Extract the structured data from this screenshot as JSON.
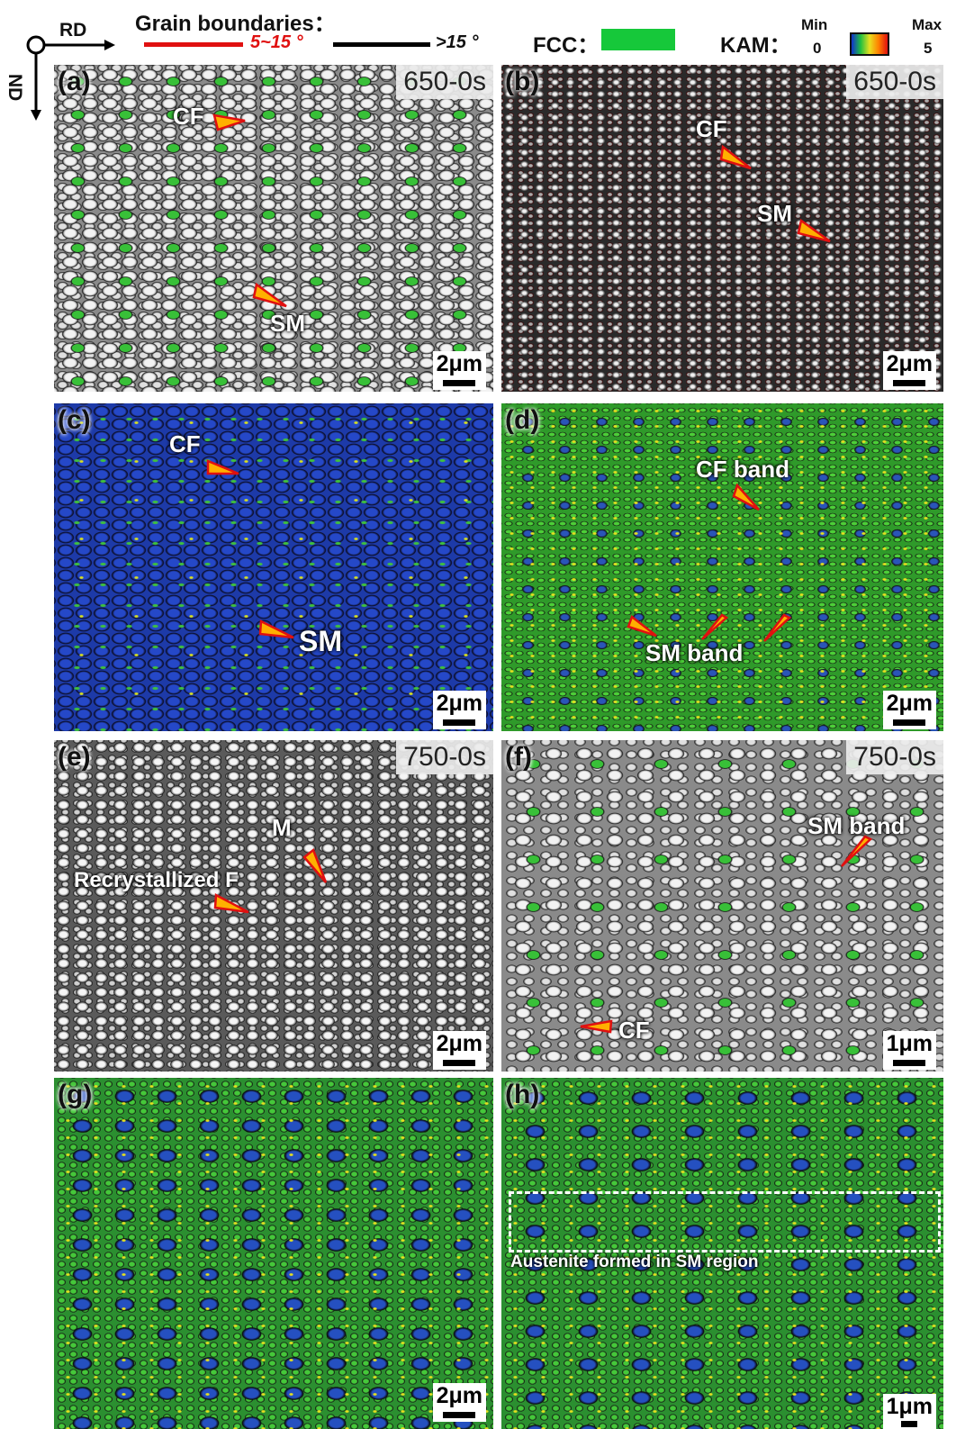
{
  "header": {
    "rd": "RD",
    "nd": "ND",
    "grain_boundaries": "Grain boundaries：",
    "low_angle": "5~15 °",
    "high_angle": ">15 °",
    "fcc": "FCC：",
    "kam": "KAM：",
    "kam_min": "Min",
    "kam_min_value": 0,
    "kam_max": "Max",
    "kam_max_value": 5
  },
  "panels": [
    {
      "label": "(a)",
      "condition": "650-0s",
      "scale_bar": "2μm",
      "annotations": [
        "CF",
        "SM"
      ]
    },
    {
      "label": "(b)",
      "condition": "650-0s",
      "scale_bar": "2μm",
      "annotations": [
        "CF",
        "SM"
      ]
    },
    {
      "label": "(c)",
      "scale_bar": "2μm",
      "annotations": [
        "CF",
        "SM"
      ]
    },
    {
      "label": "(d)",
      "scale_bar": "2μm",
      "annotations": [
        "CF band",
        "SM band"
      ]
    },
    {
      "label": "(e)",
      "condition": "750-0s",
      "scale_bar": "2μm",
      "annotations": [
        "M",
        "Recrystallized F"
      ]
    },
    {
      "label": "(f)",
      "condition": "750-0s",
      "scale_bar": "1μm",
      "annotations": [
        "SM band",
        "CF"
      ]
    },
    {
      "label": "(g)",
      "scale_bar": "2μm"
    },
    {
      "label": "(h)",
      "scale_bar": "1μm",
      "annotations": [
        "Austenite formed in SM region"
      ]
    }
  ]
}
